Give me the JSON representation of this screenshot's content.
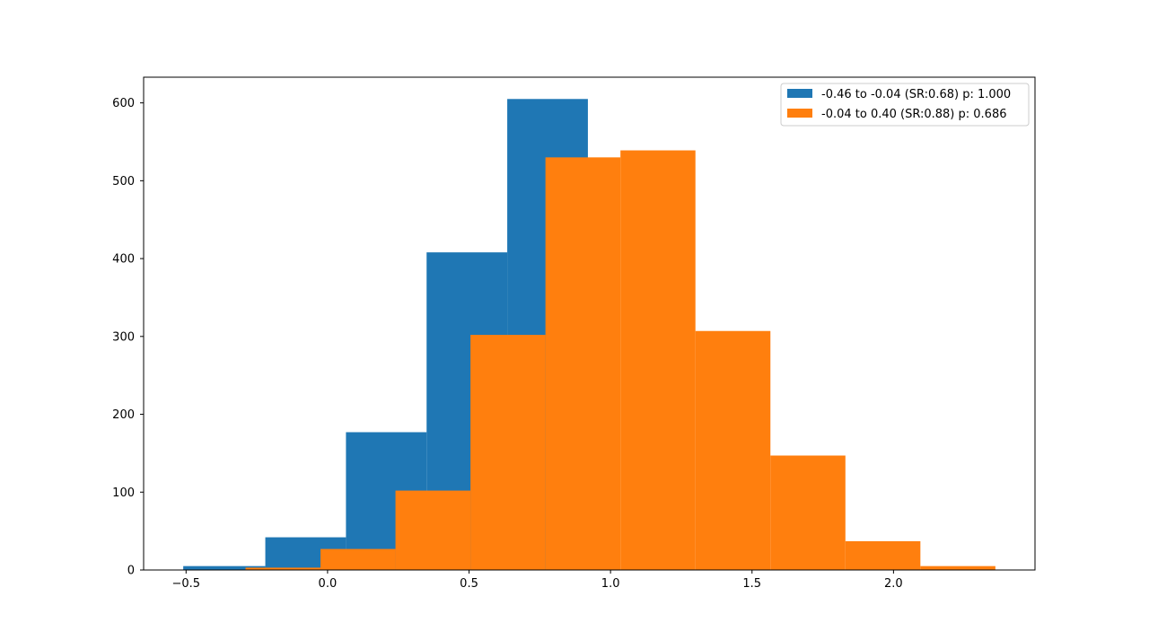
{
  "chart_data": {
    "type": "bar",
    "title": "",
    "xlabel": "",
    "ylabel": "",
    "xlim": [
      -0.65,
      2.5
    ],
    "ylim": [
      0,
      633
    ],
    "x_ticks": [
      -0.5,
      0.0,
      0.5,
      1.0,
      1.5,
      2.0
    ],
    "x_tick_labels": [
      "−0.5",
      "0.0",
      "0.5",
      "1.0",
      "1.5",
      "2.0"
    ],
    "y_ticks": [
      0,
      100,
      200,
      300,
      400,
      500,
      600
    ],
    "y_tick_labels": [
      "0",
      "100",
      "200",
      "300",
      "400",
      "500",
      "600"
    ],
    "grid": false,
    "legend_position": "top-right",
    "series": [
      {
        "name": "-0.46 to -0.04 (SR:0.68) p: 1.000",
        "color": "#1f77b4",
        "bin_edges": [
          -0.51,
          -0.22,
          0.065,
          0.35,
          0.635,
          0.92
        ],
        "values": [
          5,
          42,
          177,
          408,
          605
        ]
      },
      {
        "name": "-0.04 to 0.40 (SR:0.88) p: 0.686",
        "color": "#ff7f0e",
        "bin_edges": [
          -0.29,
          -0.025,
          0.24,
          0.505,
          0.77,
          1.035,
          1.3,
          1.565,
          1.83,
          2.095,
          2.36
        ],
        "values": [
          3,
          27,
          102,
          302,
          530,
          539,
          307,
          147,
          37,
          5
        ]
      }
    ]
  }
}
